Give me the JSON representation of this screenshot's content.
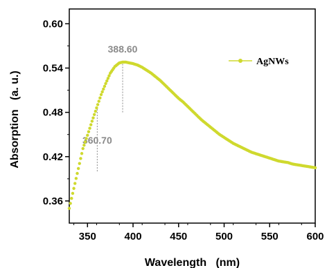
{
  "chart_data": {
    "type": "scatter",
    "title": "",
    "xlabel": "Wavelength   (nm)",
    "ylabel": "Absorption   (a. u.)",
    "xlim": [
      330,
      600
    ],
    "ylim": [
      0.33,
      0.62
    ],
    "x_ticks": [
      350,
      400,
      450,
      500,
      550,
      600
    ],
    "y_ticks": [
      0.36,
      0.42,
      0.48,
      0.54,
      0.6
    ],
    "x_tick_labels": [
      "350",
      "400",
      "450",
      "500",
      "550",
      "600"
    ],
    "y_tick_labels": [
      "0.36",
      "0.42",
      "0.48",
      "0.54",
      "0.60"
    ],
    "grid": false,
    "legend": {
      "position": "top-right",
      "entries": [
        "AgNWs"
      ]
    },
    "series": [
      {
        "name": "AgNWs",
        "color": "#cfd92e",
        "x": [
          330,
          335,
          340,
          345,
          350,
          355,
          360,
          365,
          370,
          375,
          380,
          385,
          388.6,
          392,
          396,
          400,
          405,
          410,
          415,
          420,
          425,
          430,
          435,
          440,
          445,
          450,
          455,
          460,
          465,
          470,
          475,
          480,
          485,
          490,
          495,
          500,
          505,
          510,
          515,
          520,
          525,
          530,
          535,
          540,
          545,
          550,
          555,
          560,
          565,
          570,
          575,
          580,
          585,
          590,
          595,
          600
        ],
        "y": [
          0.35,
          0.377,
          0.404,
          0.431,
          0.449,
          0.468,
          0.486,
          0.504,
          0.519,
          0.533,
          0.542,
          0.547,
          0.548,
          0.548,
          0.547,
          0.546,
          0.544,
          0.541,
          0.537,
          0.533,
          0.528,
          0.523,
          0.517,
          0.511,
          0.505,
          0.499,
          0.494,
          0.488,
          0.482,
          0.476,
          0.47,
          0.465,
          0.46,
          0.455,
          0.45,
          0.446,
          0.442,
          0.438,
          0.435,
          0.432,
          0.429,
          0.426,
          0.424,
          0.422,
          0.42,
          0.418,
          0.416,
          0.414,
          0.413,
          0.412,
          0.41,
          0.409,
          0.408,
          0.407,
          0.406,
          0.405
        ]
      }
    ],
    "annotations": [
      {
        "label": "388.60",
        "x": 388.6,
        "y_from": 0.48,
        "y_to": 0.548,
        "color": "#8a8a8a"
      },
      {
        "label": "360.70",
        "x": 360.7,
        "y_from": 0.4,
        "y_to": 0.486,
        "color": "#8a8a8a"
      }
    ]
  }
}
